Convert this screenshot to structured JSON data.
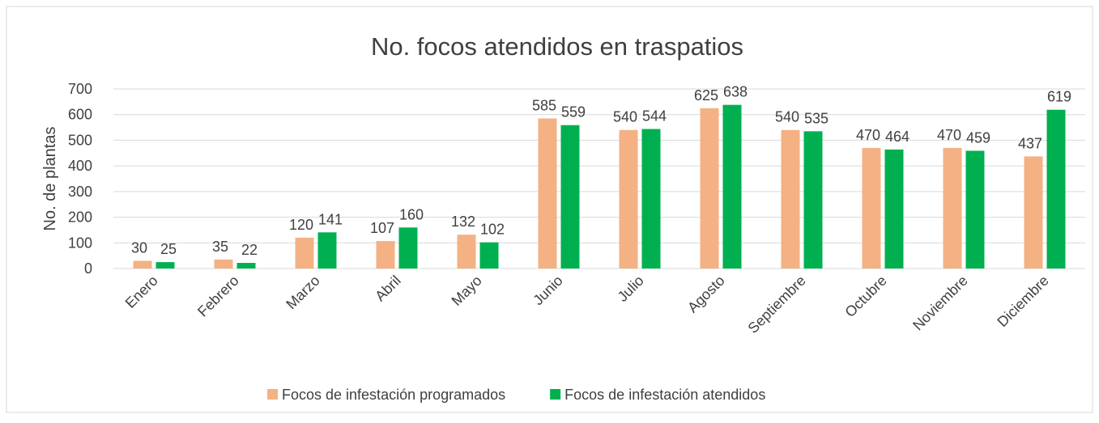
{
  "chart_data": {
    "type": "bar",
    "title": "No. focos atendidos en traspatios",
    "y_label": "No. de  plantas",
    "categories": [
      "Enero",
      "Febrero",
      "Marzo",
      "Abril",
      "Mayo",
      "Junio",
      "Julio",
      "Agosto",
      "Septiembre",
      "Octubre",
      "Noviembre",
      "Diciembre"
    ],
    "series": [
      {
        "name": "Focos de infestación programados",
        "color": "#f4b183",
        "values": [
          30,
          35,
          120,
          107,
          132,
          585,
          540,
          625,
          540,
          470,
          470,
          437
        ]
      },
      {
        "name": "Focos de infestación atendidos",
        "color": "#00b050",
        "values": [
          25,
          22,
          141,
          160,
          102,
          559,
          544,
          638,
          535,
          464,
          459,
          619
        ]
      }
    ],
    "ylim": [
      0,
      700
    ],
    "yticks": [
      0,
      100,
      200,
      300,
      400,
      500,
      600,
      700
    ],
    "grid": true,
    "legend": "bottom"
  }
}
